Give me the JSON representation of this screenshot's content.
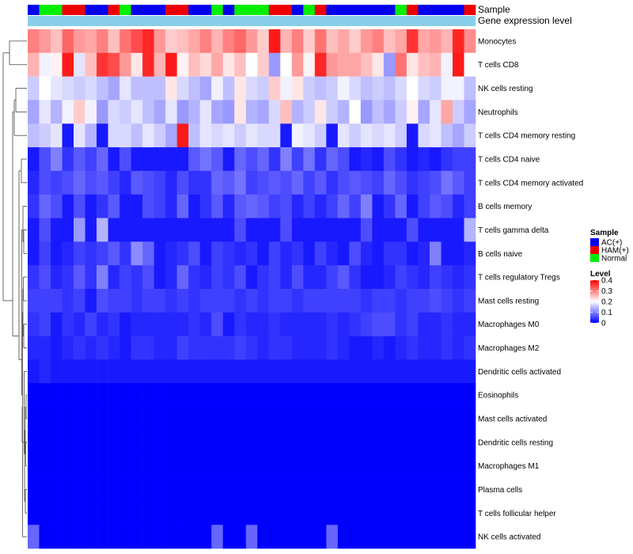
{
  "chart_data": {
    "type": "heatmap",
    "title": "",
    "colors": {
      "low": "#0000ff",
      "mid": "#ffffff",
      "high": "#ff0000",
      "gene_bar": "#87ceeb",
      "dendrogram": "#444444",
      "border": "#ffffff"
    },
    "annotations": {
      "sample_label": "Sample",
      "gene_label": "Gene expression level"
    },
    "sample_groups": [
      "A",
      "C",
      "C",
      "H",
      "H",
      "A",
      "A",
      "H",
      "C",
      "A",
      "A",
      "A",
      "H",
      "H",
      "A",
      "A",
      "C",
      "A",
      "C",
      "C",
      "C",
      "H",
      "H",
      "A",
      "C",
      "H",
      "A",
      "A",
      "A",
      "A",
      "A",
      "A",
      "C",
      "H",
      "A",
      "A",
      "A",
      "A",
      "H"
    ],
    "sample_colors": {
      "A": "#0000ee",
      "H": "#ee0000",
      "C": "#00ee00"
    },
    "legend": {
      "sample_title": "Sample",
      "sample_entries": [
        {
          "label": "AC(+)",
          "color": "#0000ee"
        },
        {
          "label": "HAM(+)",
          "color": "#ee0000"
        },
        {
          "label": "Normal",
          "color": "#00ee00"
        }
      ],
      "level_title": "Level",
      "level_ticks": [
        "0.4",
        "0.3",
        "0.2",
        "0.1",
        "0"
      ],
      "level_range": [
        0,
        0.4
      ]
    },
    "rows": [
      "Monocytes",
      "T cells CD8",
      "NK cells resting",
      "Neutrophils",
      "T cells CD4 memory resting",
      "T cells CD4 naive",
      "T cells CD4 memory activated",
      "B cells memory",
      "T cells gamma delta",
      "B cells naive",
      "T cells regulatory  Tregs",
      "Mast cells resting",
      "Macrophages M0",
      "Macrophages M2",
      "Dendritic cells activated",
      "Eosinophils",
      "Mast cells activated",
      "Dendritic cells resting",
      "Macrophages M1",
      "Plasma cells",
      "T cells follicular helper",
      "NK cells activated"
    ],
    "values": [
      [
        0.3,
        0.28,
        0.25,
        0.32,
        0.28,
        0.27,
        0.3,
        0.25,
        0.31,
        0.34,
        0.37,
        0.28,
        0.24,
        0.25,
        0.27,
        0.3,
        0.26,
        0.3,
        0.32,
        0.28,
        0.24,
        0.38,
        0.26,
        0.3,
        0.24,
        0.31,
        0.25,
        0.27,
        0.24,
        0.28,
        0.3,
        0.25,
        0.27,
        0.36,
        0.27,
        0.28,
        0.26,
        0.37,
        0.29
      ],
      [
        0.26,
        0.19,
        0.21,
        0.38,
        0.18,
        0.25,
        0.36,
        0.34,
        0.28,
        0.22,
        0.37,
        0.26,
        0.38,
        0.21,
        0.25,
        0.23,
        0.27,
        0.22,
        0.25,
        0.2,
        0.24,
        0.12,
        0.2,
        0.28,
        0.21,
        0.37,
        0.28,
        0.27,
        0.27,
        0.25,
        0.22,
        0.12,
        0.31,
        0.22,
        0.25,
        0.26,
        0.19,
        0.38,
        0.2
      ],
      [
        0.16,
        0.2,
        0.18,
        0.17,
        0.16,
        0.17,
        0.15,
        0.13,
        0.18,
        0.15,
        0.15,
        0.15,
        0.22,
        0.17,
        0.15,
        0.13,
        0.19,
        0.15,
        0.22,
        0.17,
        0.16,
        0.24,
        0.19,
        0.22,
        0.16,
        0.15,
        0.16,
        0.19,
        0.17,
        0.15,
        0.16,
        0.15,
        0.17,
        0.2,
        0.17,
        0.16,
        0.19,
        0.19,
        0.15
      ],
      [
        0.13,
        0.18,
        0.14,
        0.19,
        0.24,
        0.19,
        0.12,
        0.17,
        0.16,
        0.18,
        0.15,
        0.13,
        0.18,
        0.12,
        0.14,
        0.18,
        0.13,
        0.12,
        0.22,
        0.14,
        0.13,
        0.17,
        0.25,
        0.14,
        0.16,
        0.22,
        0.16,
        0.14,
        0.2,
        0.12,
        0.15,
        0.13,
        0.16,
        0.21,
        0.13,
        0.18,
        0.27,
        0.16,
        0.13
      ],
      [
        0.15,
        0.16,
        0.18,
        0.02,
        0.18,
        0.14,
        0.02,
        0.17,
        0.17,
        0.15,
        0.18,
        0.16,
        0.13,
        0.38,
        0.15,
        0.18,
        0.17,
        0.18,
        0.16,
        0.18,
        0.17,
        0.17,
        0.02,
        0.19,
        0.18,
        0.16,
        0.02,
        0.18,
        0.16,
        0.18,
        0.17,
        0.18,
        0.16,
        0.02,
        0.17,
        0.18,
        0.15,
        0.13,
        0.16
      ],
      [
        0.02,
        0.06,
        0.1,
        0.04,
        0.07,
        0.05,
        0.08,
        0.02,
        0.06,
        0.02,
        0.02,
        0.02,
        0.02,
        0.02,
        0.07,
        0.09,
        0.07,
        0.02,
        0.08,
        0.06,
        0.08,
        0.04,
        0.1,
        0.05,
        0.09,
        0.04,
        0.08,
        0.06,
        0.02,
        0.03,
        0.02,
        0.06,
        0.04,
        0.02,
        0.03,
        0.02,
        0.04,
        0.05,
        0.05
      ],
      [
        0.03,
        0.06,
        0.05,
        0.06,
        0.08,
        0.06,
        0.07,
        0.05,
        0.03,
        0.07,
        0.06,
        0.05,
        0.03,
        0.06,
        0.04,
        0.04,
        0.08,
        0.07,
        0.09,
        0.05,
        0.06,
        0.07,
        0.06,
        0.08,
        0.05,
        0.07,
        0.04,
        0.06,
        0.07,
        0.06,
        0.05,
        0.08,
        0.06,
        0.04,
        0.05,
        0.06,
        0.09,
        0.07,
        0.05
      ],
      [
        0.04,
        0.08,
        0.06,
        0.02,
        0.06,
        0.02,
        0.04,
        0.07,
        0.02,
        0.02,
        0.06,
        0.05,
        0.03,
        0.08,
        0.02,
        0.04,
        0.07,
        0.03,
        0.07,
        0.08,
        0.07,
        0.05,
        0.06,
        0.03,
        0.05,
        0.03,
        0.05,
        0.08,
        0.05,
        0.1,
        0.02,
        0.04,
        0.08,
        0.02,
        0.05,
        0.07,
        0.06,
        0.03,
        0.05
      ],
      [
        0.02,
        0.06,
        0.02,
        0.02,
        0.12,
        0.02,
        0.14,
        0.02,
        0.02,
        0.02,
        0.02,
        0.02,
        0.02,
        0.02,
        0.02,
        0.02,
        0.02,
        0.02,
        0.06,
        0.02,
        0.02,
        0.02,
        0.06,
        0.02,
        0.02,
        0.02,
        0.02,
        0.02,
        0.02,
        0.06,
        0.02,
        0.02,
        0.02,
        0.06,
        0.02,
        0.02,
        0.02,
        0.02,
        0.14
      ],
      [
        0.02,
        0.05,
        0.02,
        0.03,
        0.05,
        0.04,
        0.05,
        0.07,
        0.04,
        0.11,
        0.08,
        0.02,
        0.03,
        0.04,
        0.06,
        0.02,
        0.05,
        0.04,
        0.03,
        0.04,
        0.02,
        0.05,
        0.03,
        0.04,
        0.02,
        0.05,
        0.03,
        0.02,
        0.06,
        0.03,
        0.02,
        0.04,
        0.04,
        0.02,
        0.03,
        0.1,
        0.02,
        0.02,
        0.03
      ],
      [
        0.04,
        0.06,
        0.03,
        0.04,
        0.07,
        0.04,
        0.1,
        0.03,
        0.05,
        0.04,
        0.06,
        0.02,
        0.03,
        0.08,
        0.04,
        0.03,
        0.05,
        0.04,
        0.06,
        0.02,
        0.04,
        0.05,
        0.03,
        0.06,
        0.03,
        0.03,
        0.05,
        0.07,
        0.04,
        0.02,
        0.02,
        0.03,
        0.05,
        0.04,
        0.03,
        0.05,
        0.04,
        0.03,
        0.04
      ],
      [
        0.05,
        0.05,
        0.05,
        0.04,
        0.05,
        0.02,
        0.06,
        0.05,
        0.05,
        0.04,
        0.05,
        0.05,
        0.04,
        0.05,
        0.04,
        0.05,
        0.05,
        0.05,
        0.04,
        0.05,
        0.04,
        0.05,
        0.05,
        0.04,
        0.05,
        0.05,
        0.05,
        0.05,
        0.05,
        0.04,
        0.05,
        0.05,
        0.04,
        0.05,
        0.05,
        0.06,
        0.05,
        0.04,
        0.05
      ],
      [
        0.04,
        0.05,
        0.02,
        0.04,
        0.03,
        0.05,
        0.03,
        0.04,
        0.02,
        0.03,
        0.03,
        0.03,
        0.03,
        0.03,
        0.04,
        0.03,
        0.06,
        0.02,
        0.04,
        0.03,
        0.03,
        0.04,
        0.03,
        0.03,
        0.03,
        0.03,
        0.04,
        0.03,
        0.04,
        0.05,
        0.06,
        0.06,
        0.04,
        0.05,
        0.03,
        0.03,
        0.04,
        0.03,
        0.03
      ],
      [
        0.03,
        0.03,
        0.02,
        0.03,
        0.04,
        0.03,
        0.04,
        0.03,
        0.02,
        0.04,
        0.04,
        0.03,
        0.03,
        0.05,
        0.04,
        0.04,
        0.04,
        0.04,
        0.05,
        0.04,
        0.03,
        0.04,
        0.04,
        0.03,
        0.03,
        0.03,
        0.04,
        0.03,
        0.02,
        0.02,
        0.03,
        0.02,
        0.03,
        0.04,
        0.03,
        0.03,
        0.04,
        0.03,
        0.04
      ],
      [
        0.02,
        0.03,
        0.02,
        0.02,
        0.02,
        0.02,
        0.02,
        0.02,
        0.02,
        0.02,
        0.02,
        0.02,
        0.02,
        0.02,
        0.02,
        0.02,
        0.02,
        0.02,
        0.02,
        0.02,
        0.02,
        0.02,
        0.02,
        0.02,
        0.02,
        0.02,
        0.02,
        0.02,
        0.02,
        0.02,
        0.02,
        0.02,
        0.02,
        0.02,
        0.02,
        0.02,
        0.02,
        0.02,
        0.02
      ],
      [
        0,
        0,
        0,
        0,
        0,
        0,
        0,
        0,
        0,
        0,
        0,
        0,
        0,
        0,
        0,
        0,
        0,
        0,
        0,
        0,
        0,
        0,
        0,
        0,
        0,
        0,
        0,
        0,
        0,
        0,
        0,
        0,
        0,
        0,
        0,
        0,
        0,
        0,
        0
      ],
      [
        0,
        0,
        0,
        0,
        0,
        0,
        0,
        0,
        0,
        0,
        0,
        0,
        0,
        0,
        0,
        0,
        0,
        0,
        0,
        0,
        0,
        0,
        0,
        0,
        0,
        0,
        0,
        0,
        0,
        0,
        0,
        0,
        0,
        0,
        0,
        0,
        0,
        0,
        0
      ],
      [
        0,
        0,
        0,
        0,
        0,
        0,
        0,
        0,
        0,
        0,
        0,
        0,
        0,
        0,
        0,
        0,
        0,
        0,
        0,
        0,
        0,
        0,
        0,
        0,
        0,
        0,
        0,
        0,
        0,
        0,
        0,
        0,
        0,
        0,
        0,
        0,
        0,
        0,
        0
      ],
      [
        0,
        0,
        0,
        0,
        0,
        0,
        0,
        0,
        0,
        0,
        0,
        0,
        0,
        0,
        0,
        0,
        0,
        0,
        0,
        0,
        0,
        0,
        0,
        0,
        0,
        0,
        0,
        0,
        0,
        0,
        0,
        0,
        0,
        0,
        0,
        0,
        0,
        0,
        0
      ],
      [
        0,
        0,
        0,
        0,
        0,
        0,
        0,
        0,
        0,
        0,
        0,
        0,
        0,
        0,
        0,
        0,
        0,
        0,
        0,
        0,
        0,
        0,
        0,
        0,
        0,
        0,
        0,
        0,
        0,
        0,
        0,
        0,
        0,
        0,
        0,
        0,
        0,
        0,
        0
      ],
      [
        0,
        0,
        0,
        0,
        0,
        0,
        0,
        0,
        0,
        0,
        0,
        0,
        0,
        0,
        0,
        0,
        0,
        0,
        0,
        0,
        0,
        0,
        0,
        0,
        0,
        0,
        0,
        0,
        0,
        0,
        0,
        0,
        0,
        0,
        0,
        0,
        0,
        0,
        0
      ],
      [
        0.08,
        0,
        0,
        0,
        0,
        0,
        0,
        0,
        0,
        0,
        0,
        0,
        0,
        0,
        0,
        0,
        0.08,
        0,
        0,
        0.08,
        0,
        0,
        0,
        0,
        0,
        0,
        0.08,
        0,
        0,
        0,
        0,
        0,
        0,
        0,
        0,
        0,
        0,
        0,
        0
      ]
    ]
  }
}
